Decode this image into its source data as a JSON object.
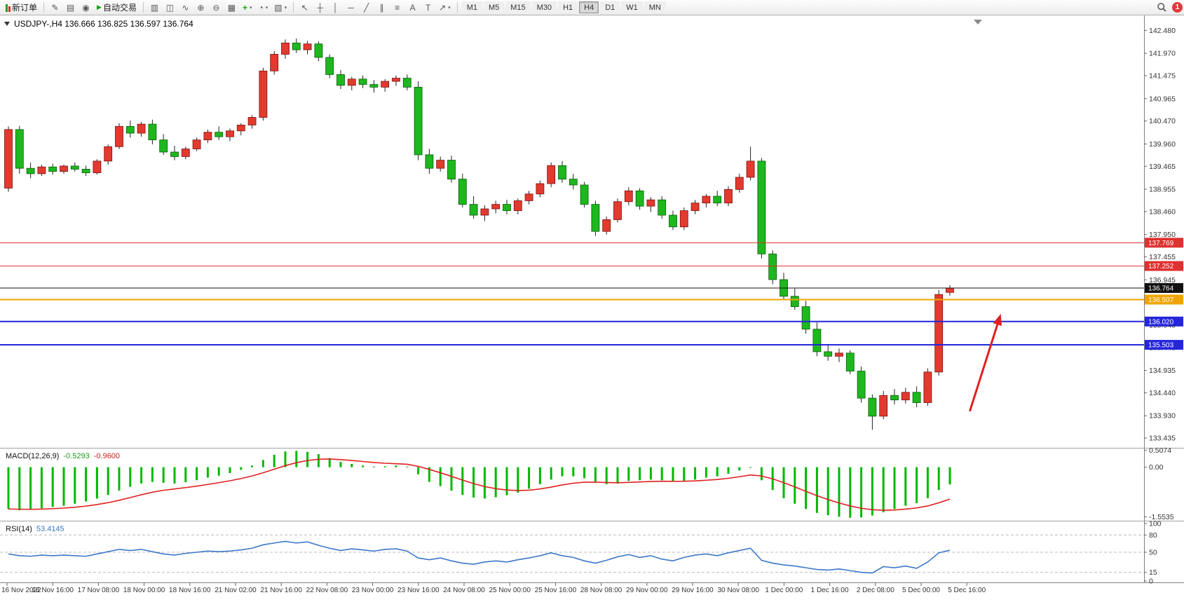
{
  "toolbar": {
    "new_order_label": "新订单",
    "auto_trading_label": "自动交易",
    "window_buttons": [
      {
        "name": "metaeditor-button",
        "glyph": "✎"
      },
      {
        "name": "market-watch-button",
        "glyph": "▤"
      },
      {
        "name": "navigator-button",
        "glyph": "◉"
      }
    ],
    "chart_buttons": [
      {
        "name": "bar-chart-button",
        "glyph": "▥"
      },
      {
        "name": "candlestick-chart-button",
        "glyph": "◫"
      },
      {
        "name": "line-chart-button",
        "glyph": "∿"
      },
      {
        "name": "zoom-in-button",
        "glyph": "⊕"
      },
      {
        "name": "zoom-out-button",
        "glyph": "⊖"
      },
      {
        "name": "tile-windows-button",
        "glyph": "▦"
      },
      {
        "name": "indicators-button",
        "glyph": "+",
        "caret": true,
        "accent": "#18a018"
      },
      {
        "name": "periods-button",
        "glyph": "◔",
        "caret": true
      },
      {
        "name": "templates-button",
        "glyph": "▧",
        "caret": true
      }
    ],
    "tool_buttons": [
      {
        "name": "cursor-button",
        "glyph": "↖"
      },
      {
        "name": "crosshair-button",
        "glyph": "┼"
      },
      {
        "name": "vertical-line-button",
        "glyph": "│"
      },
      {
        "name": "horizontal-line-button",
        "glyph": "─"
      },
      {
        "name": "trendline-button",
        "glyph": "╱"
      },
      {
        "name": "equidistant-channel-button",
        "glyph": "∥"
      },
      {
        "name": "fibonacci-button",
        "glyph": "≡"
      },
      {
        "name": "text-button",
        "glyph": "A"
      },
      {
        "name": "text-label-button",
        "glyph": "T"
      },
      {
        "name": "arrows-button",
        "glyph": "↗",
        "caret": true
      }
    ],
    "timeframes": [
      "M1",
      "M5",
      "M15",
      "M30",
      "H1",
      "H4",
      "D1",
      "W1",
      "MN"
    ],
    "active_timeframe": "H4",
    "notification_count": "1"
  },
  "chart_data": {
    "type": "candlestick",
    "title": "USDJPY-,H4 136.666 136.825 136.597 136.764",
    "symbol": "USDJPY-",
    "timeframe": "H4",
    "ohlc_current": {
      "open": "136.666",
      "high": "136.825",
      "low": "136.597",
      "close": "136.764"
    },
    "colors": {
      "up": "#e23a2e",
      "down": "#1db81d",
      "wick": "#222222",
      "up_border": "#7d1010",
      "down_border": "#0a5c0a"
    },
    "price_range": {
      "max": 142.75,
      "min": 133.28
    },
    "price_axis_labels": [
      "142.480",
      "141.970",
      "141.475",
      "140.965",
      "140.470",
      "139.960",
      "139.465",
      "138.955",
      "138.460",
      "137.950",
      "137.455",
      "136.945",
      "136.450",
      "135.940",
      "135.445",
      "134.935",
      "134.440",
      "133.930",
      "133.435"
    ],
    "time_axis_labels": [
      "16 Nov 2022",
      "16 Nov 16:00",
      "17 Nov 08:00",
      "18 Nov 00:00",
      "18 Nov 16:00",
      "21 Nov 02:00",
      "21 Nov 16:00",
      "22 Nov 08:00",
      "23 Nov 00:00",
      "23 Nov 16:00",
      "24 Nov 08:00",
      "25 Nov 00:00",
      "25 Nov 16:00",
      "28 Nov 08:00",
      "29 Nov 00:00",
      "29 Nov 16:00",
      "30 Nov 08:00",
      "1 Dec 00:00",
      "1 Dec 16:00",
      "2 Dec 08:00",
      "5 Dec 00:00",
      "5 Dec 16:00"
    ],
    "levels": [
      {
        "price": 137.769,
        "label": "137.769",
        "color": "#e03030",
        "width": 1
      },
      {
        "price": 137.252,
        "label": "137.252",
        "color": "#e03030",
        "width": 1
      },
      {
        "price": 136.764,
        "label": "136.764",
        "color": "#111111",
        "width": 1
      },
      {
        "price": 136.507,
        "label": "136.507",
        "color": "#efa500",
        "width": 2
      },
      {
        "price": 136.02,
        "label": "136.020",
        "color": "#2525dd",
        "width": 2
      },
      {
        "price": 135.503,
        "label": "135.503",
        "color": "#2525dd",
        "width": 2
      }
    ],
    "annotation_arrow": {
      "color": "#e02020",
      "from": {
        "bar": 86.8,
        "price": 134.03
      },
      "to": {
        "bar": 89.6,
        "price": 136.19
      }
    },
    "candles": [
      [
        138.98,
        140.35,
        138.9,
        140.28
      ],
      [
        140.28,
        140.36,
        139.3,
        139.42
      ],
      [
        139.42,
        139.55,
        139.2,
        139.3
      ],
      [
        139.3,
        139.5,
        139.25,
        139.45
      ],
      [
        139.45,
        139.52,
        139.28,
        139.35
      ],
      [
        139.35,
        139.5,
        139.3,
        139.47
      ],
      [
        139.47,
        139.55,
        139.35,
        139.4
      ],
      [
        139.4,
        139.48,
        139.25,
        139.32
      ],
      [
        139.32,
        139.62,
        139.28,
        139.58
      ],
      [
        139.58,
        139.95,
        139.5,
        139.9
      ],
      [
        139.9,
        140.42,
        139.85,
        140.35
      ],
      [
        140.35,
        140.48,
        140.1,
        140.2
      ],
      [
        140.2,
        140.45,
        140.12,
        140.4
      ],
      [
        140.4,
        140.5,
        139.95,
        140.05
      ],
      [
        140.05,
        140.18,
        139.72,
        139.78
      ],
      [
        139.78,
        139.92,
        139.6,
        139.68
      ],
      [
        139.68,
        139.9,
        139.62,
        139.85
      ],
      [
        139.85,
        140.1,
        139.8,
        140.05
      ],
      [
        140.05,
        140.28,
        139.98,
        140.22
      ],
      [
        140.22,
        140.35,
        140.05,
        140.12
      ],
      [
        140.12,
        140.3,
        140.02,
        140.25
      ],
      [
        140.25,
        140.42,
        140.15,
        140.38
      ],
      [
        140.38,
        140.6,
        140.3,
        140.55
      ],
      [
        140.55,
        141.65,
        140.48,
        141.58
      ],
      [
        141.58,
        142.02,
        141.5,
        141.95
      ],
      [
        141.95,
        142.28,
        141.85,
        142.2
      ],
      [
        142.2,
        142.3,
        141.98,
        142.05
      ],
      [
        142.05,
        142.25,
        141.95,
        142.18
      ],
      [
        142.18,
        142.24,
        141.8,
        141.88
      ],
      [
        141.88,
        141.95,
        141.42,
        141.5
      ],
      [
        141.5,
        141.6,
        141.18,
        141.26
      ],
      [
        141.26,
        141.45,
        141.15,
        141.4
      ],
      [
        141.4,
        141.48,
        141.2,
        141.28
      ],
      [
        141.28,
        141.38,
        141.1,
        141.22
      ],
      [
        141.22,
        141.4,
        141.12,
        141.35
      ],
      [
        141.35,
        141.48,
        141.25,
        141.42
      ],
      [
        141.42,
        141.5,
        141.15,
        141.22
      ],
      [
        141.22,
        141.35,
        139.6,
        139.72
      ],
      [
        139.72,
        139.85,
        139.3,
        139.42
      ],
      [
        139.42,
        139.68,
        139.35,
        139.6
      ],
      [
        139.6,
        139.7,
        139.1,
        139.18
      ],
      [
        139.18,
        139.3,
        138.55,
        138.62
      ],
      [
        138.62,
        138.8,
        138.3,
        138.38
      ],
      [
        138.38,
        138.6,
        138.25,
        138.52
      ],
      [
        138.52,
        138.7,
        138.42,
        138.62
      ],
      [
        138.62,
        138.72,
        138.4,
        138.48
      ],
      [
        138.48,
        138.75,
        138.4,
        138.7
      ],
      [
        138.7,
        138.92,
        138.62,
        138.85
      ],
      [
        138.85,
        139.15,
        138.78,
        139.08
      ],
      [
        139.08,
        139.55,
        139.0,
        139.48
      ],
      [
        139.48,
        139.58,
        139.1,
        139.18
      ],
      [
        139.18,
        139.3,
        138.95,
        139.05
      ],
      [
        139.05,
        139.12,
        138.55,
        138.62
      ],
      [
        138.62,
        138.7,
        137.92,
        138.02
      ],
      [
        138.02,
        138.35,
        137.95,
        138.28
      ],
      [
        138.28,
        138.75,
        138.22,
        138.68
      ],
      [
        138.68,
        139.0,
        138.6,
        138.92
      ],
      [
        138.92,
        138.98,
        138.5,
        138.58
      ],
      [
        138.58,
        138.78,
        138.45,
        138.72
      ],
      [
        138.72,
        138.8,
        138.3,
        138.38
      ],
      [
        138.38,
        138.48,
        138.05,
        138.12
      ],
      [
        138.12,
        138.55,
        138.05,
        138.48
      ],
      [
        138.48,
        138.72,
        138.4,
        138.65
      ],
      [
        138.65,
        138.85,
        138.55,
        138.8
      ],
      [
        138.8,
        138.92,
        138.58,
        138.65
      ],
      [
        138.65,
        139.02,
        138.58,
        138.95
      ],
      [
        138.95,
        139.3,
        138.88,
        139.22
      ],
      [
        139.22,
        139.9,
        139.15,
        139.58
      ],
      [
        139.58,
        139.65,
        137.42,
        137.52
      ],
      [
        137.52,
        137.6,
        136.85,
        136.95
      ],
      [
        136.95,
        137.1,
        136.5,
        136.58
      ],
      [
        136.58,
        136.75,
        136.28,
        136.35
      ],
      [
        136.35,
        136.48,
        135.75,
        135.85
      ],
      [
        135.85,
        136.0,
        135.25,
        135.35
      ],
      [
        135.35,
        135.52,
        135.15,
        135.25
      ],
      [
        135.25,
        135.42,
        135.12,
        135.32
      ],
      [
        135.32,
        135.38,
        134.85,
        134.92
      ],
      [
        134.92,
        135.02,
        134.22,
        134.32
      ],
      [
        134.32,
        134.4,
        133.62,
        133.92
      ],
      [
        133.92,
        134.48,
        133.85,
        134.38
      ],
      [
        134.38,
        134.52,
        134.18,
        134.28
      ],
      [
        134.28,
        134.55,
        134.2,
        134.45
      ],
      [
        134.45,
        134.58,
        134.12,
        134.22
      ],
      [
        134.22,
        134.98,
        134.15,
        134.9
      ],
      [
        134.9,
        136.72,
        134.82,
        136.62
      ],
      [
        136.666,
        136.825,
        136.597,
        136.764
      ]
    ],
    "macd": {
      "label": "MACD(12,26,9)",
      "main_value": "-0.5293",
      "signal_value": "-0.9600",
      "scale_labels": [
        "0.5074",
        "0.00",
        "-1.5535"
      ],
      "max": 0.5074,
      "min": -1.5535,
      "histogram_color": "#00b800",
      "signal_color": "#e02020",
      "values": [
        -1.28,
        -1.32,
        -1.3,
        -1.26,
        -1.22,
        -1.18,
        -1.12,
        -1.05,
        -0.96,
        -0.85,
        -0.72,
        -0.6,
        -0.5,
        -0.45,
        -0.48,
        -0.5,
        -0.46,
        -0.4,
        -0.32,
        -0.26,
        -0.18,
        -0.08,
        0.05,
        0.22,
        0.38,
        0.48,
        0.5,
        0.47,
        0.4,
        0.28,
        0.16,
        0.1,
        0.05,
        0.02,
        0.03,
        0.05,
        0.02,
        -0.22,
        -0.45,
        -0.58,
        -0.72,
        -0.85,
        -0.93,
        -0.96,
        -0.92,
        -0.86,
        -0.78,
        -0.66,
        -0.52,
        -0.38,
        -0.28,
        -0.28,
        -0.34,
        -0.45,
        -0.52,
        -0.5,
        -0.42,
        -0.4,
        -0.38,
        -0.4,
        -0.44,
        -0.42,
        -0.38,
        -0.32,
        -0.28,
        -0.2,
        -0.1,
        -0.02,
        -0.4,
        -0.7,
        -0.95,
        -1.12,
        -1.28,
        -1.4,
        -1.47,
        -1.52,
        -1.55,
        -1.54,
        -1.48,
        -1.38,
        -1.28,
        -1.18,
        -1.1,
        -0.95,
        -0.7,
        -0.5293
      ]
    },
    "rsi": {
      "label": "RSI(14)",
      "value": "53.4145",
      "scale_labels": [
        "100",
        "80",
        "50",
        "15",
        "0"
      ],
      "levels": [
        80,
        50,
        15
      ],
      "color": "#3c78c8",
      "values": [
        47,
        44,
        43,
        45,
        44,
        45,
        44,
        43,
        47,
        51,
        55,
        53,
        55,
        51,
        47,
        45,
        48,
        50,
        52,
        51,
        52,
        54,
        57,
        63,
        66,
        69,
        66,
        68,
        62,
        57,
        53,
        56,
        54,
        52,
        55,
        56,
        52,
        40,
        37,
        40,
        35,
        31,
        29,
        33,
        35,
        33,
        37,
        40,
        44,
        49,
        44,
        41,
        35,
        31,
        36,
        42,
        46,
        41,
        44,
        38,
        35,
        41,
        45,
        47,
        44,
        49,
        53,
        57,
        36,
        31,
        28,
        26,
        23,
        20,
        19,
        21,
        18,
        15,
        14,
        25,
        23,
        26,
        22,
        33,
        49,
        53.41
      ]
    }
  }
}
